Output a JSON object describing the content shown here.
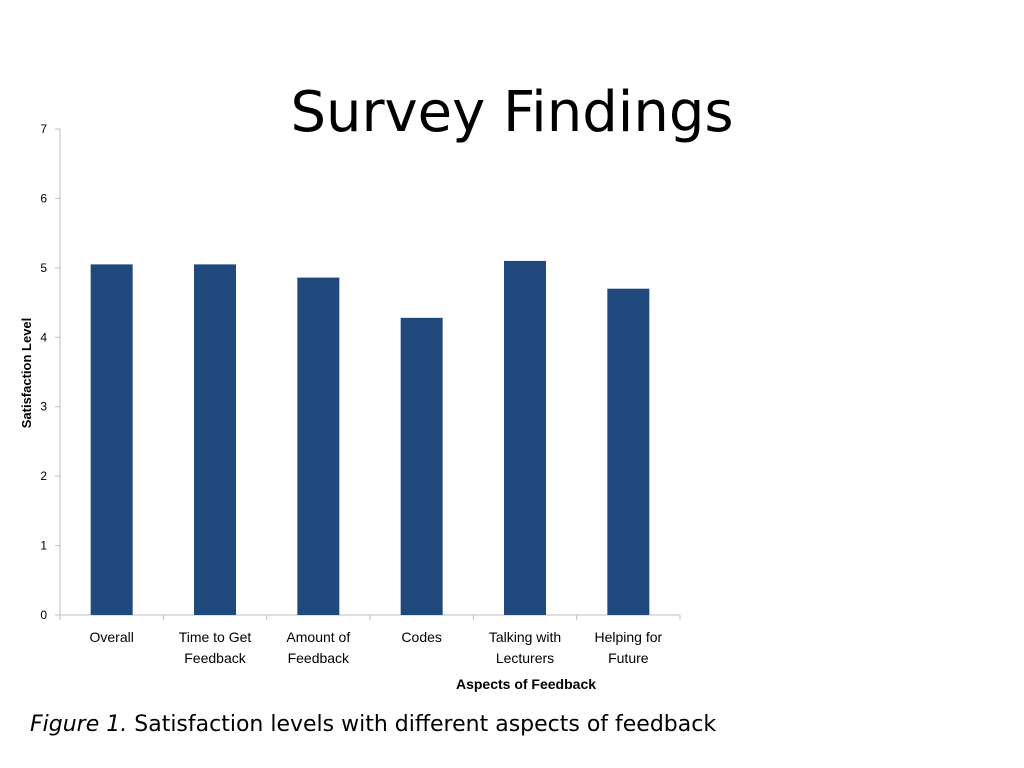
{
  "slide": {
    "title": "Survey Findings"
  },
  "caption": {
    "label": "Figure 1.",
    "text": " Satisfaction levels with different aspects of feedback"
  },
  "chart_data": {
    "type": "bar",
    "categories": [
      [
        "Overall"
      ],
      [
        "Time to Get",
        "Feedback"
      ],
      [
        "Amount of",
        "Feedback"
      ],
      [
        "Codes"
      ],
      [
        "Talking with",
        "Lecturers"
      ],
      [
        "Helping for",
        "Future"
      ]
    ],
    "values": [
      5.05,
      5.05,
      4.86,
      4.28,
      5.1,
      4.7
    ],
    "xlabel": "Aspects of Feedback",
    "ylabel": "Satisfaction Level",
    "ylim": [
      0,
      7
    ],
    "yticks": [
      0,
      1,
      2,
      3,
      4,
      5,
      6,
      7
    ],
    "grid": false,
    "legend": "none",
    "bar_color": "#1F497D",
    "axis_color": "#BFBFBF"
  }
}
